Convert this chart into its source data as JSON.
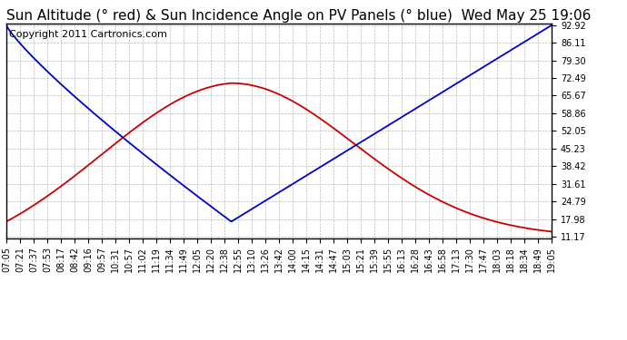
{
  "title": "Sun Altitude (° red) & Sun Incidence Angle on PV Panels (° blue)  Wed May 25 19:06",
  "copyright": "Copyright 2011 Cartronics.com",
  "yticks": [
    11.17,
    17.98,
    24.79,
    31.61,
    38.42,
    45.23,
    52.05,
    58.86,
    65.67,
    72.49,
    79.3,
    86.11,
    92.92
  ],
  "ymin": 11.17,
  "ymax": 92.92,
  "xtick_labels": [
    "07:05",
    "07:21",
    "07:37",
    "07:53",
    "08:17",
    "08:42",
    "09:16",
    "09:57",
    "10:31",
    "10:57",
    "11:02",
    "11:19",
    "11:34",
    "11:49",
    "12:05",
    "12:20",
    "12:38",
    "12:55",
    "13:10",
    "13:26",
    "13:42",
    "14:00",
    "14:15",
    "14:31",
    "14:47",
    "15:03",
    "15:21",
    "15:39",
    "15:55",
    "16:13",
    "16:28",
    "16:43",
    "16:58",
    "17:13",
    "17:30",
    "17:47",
    "18:03",
    "18:18",
    "18:34",
    "18:49",
    "19:05"
  ],
  "red_line_color": "#cc0000",
  "blue_line_color": "#0000cc",
  "grid_color": "#aaaaaa",
  "background_color": "#ffffff",
  "title_fontsize": 11,
  "copyright_fontsize": 8,
  "tick_fontsize": 7
}
